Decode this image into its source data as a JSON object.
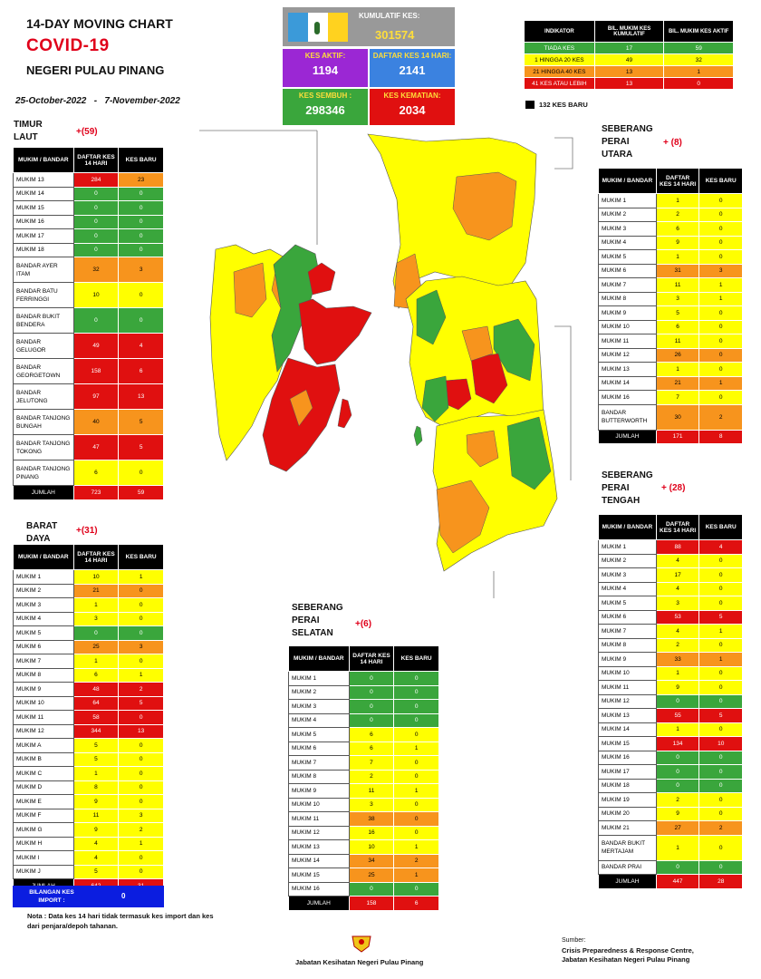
{
  "header": {
    "line1": "14-DAY MOVING CHART",
    "line2": "COVID-19",
    "line3": "NEGERI PULAU PINANG",
    "date_from": "25-October-2022",
    "dash": "-",
    "date_to": "7-November-2022"
  },
  "kpis": {
    "kumulatif": {
      "label": "KUMULATIF KES:",
      "value": "301574"
    },
    "aktif": {
      "label": "KES AKTIF:",
      "value": "1194"
    },
    "daftar14": {
      "label": "DAFTAR KES 14 HARI:",
      "value": "2141"
    },
    "sembuh": {
      "label": "KES SEMBUH :",
      "value": "298346"
    },
    "kematian": {
      "label": "KES KEMATIAN:",
      "value": "2034"
    }
  },
  "indicator": {
    "headers": [
      "INDIKATOR",
      "BIL. MUKIM KES KUMULATIF",
      "BIL. MUKIM KES AKTIF"
    ],
    "rows": [
      {
        "label": "TIADA KES",
        "a": "17",
        "b": "59",
        "c": "G"
      },
      {
        "label": "1 HINGGA 20 KES",
        "a": "49",
        "b": "32",
        "c": "Y"
      },
      {
        "label": "21 HINGGA 40 KES",
        "a": "13",
        "b": "1",
        "c": "O"
      },
      {
        "label": "41 KES ATAU LEBIH",
        "a": "13",
        "b": "0",
        "c": "R"
      }
    ],
    "legend": "132  KES BARU"
  },
  "common": {
    "h_name": "MUKIM / BANDAR",
    "h_daftar": "DAFTAR KES 14 HARI",
    "h_baru": "KES BARU",
    "jumlah": "JUMLAH"
  },
  "districts": {
    "tl": {
      "name": "TIMUR LAUT",
      "plus": "+(59)",
      "total_daftar": "723",
      "total_baru": "59",
      "rows": [
        {
          "n": "MUKIM 13",
          "d": "284",
          "b": "23",
          "cd": "R",
          "cb": "O"
        },
        {
          "n": "MUKIM 14",
          "d": "0",
          "b": "0",
          "cd": "G",
          "cb": "G"
        },
        {
          "n": "MUKIM 15",
          "d": "0",
          "b": "0",
          "cd": "G",
          "cb": "G"
        },
        {
          "n": "MUKIM 16",
          "d": "0",
          "b": "0",
          "cd": "G",
          "cb": "G"
        },
        {
          "n": "MUKIM 17",
          "d": "0",
          "b": "0",
          "cd": "G",
          "cb": "G"
        },
        {
          "n": "MUKIM 18",
          "d": "0",
          "b": "0",
          "cd": "G",
          "cb": "G"
        },
        {
          "n": "BANDAR AYER ITAM",
          "d": "32",
          "b": "3",
          "cd": "O",
          "cb": "O",
          "h": 2
        },
        {
          "n": "BANDAR BATU FERRINGGI",
          "d": "10",
          "b": "0",
          "cd": "Y",
          "cb": "Y",
          "h": 2
        },
        {
          "n": "BANDAR BUKIT BENDERA",
          "d": "0",
          "b": "0",
          "cd": "G",
          "cb": "G",
          "h": 2
        },
        {
          "n": "BANDAR GELUGOR",
          "d": "49",
          "b": "4",
          "cd": "R",
          "cb": "R",
          "h": 2
        },
        {
          "n": "BANDAR GEORGETOWN",
          "d": "158",
          "b": "6",
          "cd": "R",
          "cb": "R",
          "h": 2
        },
        {
          "n": "BANDAR JELUTONG",
          "d": "97",
          "b": "13",
          "cd": "R",
          "cb": "R",
          "h": 2
        },
        {
          "n": "BANDAR TANJONG BUNGAH",
          "d": "40",
          "b": "5",
          "cd": "O",
          "cb": "O",
          "h": 2
        },
        {
          "n": "BANDAR TANJONG TOKONG",
          "d": "47",
          "b": "5",
          "cd": "R",
          "cb": "R",
          "h": 2
        },
        {
          "n": "BANDAR TANJONG PINANG",
          "d": "6",
          "b": "0",
          "cd": "Y",
          "cb": "Y",
          "h": 2
        }
      ]
    },
    "bd": {
      "name": "BARAT DAYA",
      "plus": "+(31)",
      "total_daftar": "642",
      "total_baru": "31",
      "rows": [
        {
          "n": "MUKIM 1",
          "d": "10",
          "b": "1",
          "cd": "Y",
          "cb": "Y"
        },
        {
          "n": "MUKIM 2",
          "d": "21",
          "b": "0",
          "cd": "O",
          "cb": "O"
        },
        {
          "n": "MUKIM 3",
          "d": "1",
          "b": "0",
          "cd": "Y",
          "cb": "Y"
        },
        {
          "n": "MUKIM 4",
          "d": "3",
          "b": "0",
          "cd": "Y",
          "cb": "Y"
        },
        {
          "n": "MUKIM 5",
          "d": "0",
          "b": "0",
          "cd": "G",
          "cb": "G"
        },
        {
          "n": "MUKIM 6",
          "d": "25",
          "b": "3",
          "cd": "O",
          "cb": "O"
        },
        {
          "n": "MUKIM 7",
          "d": "1",
          "b": "0",
          "cd": "Y",
          "cb": "Y"
        },
        {
          "n": "MUKIM 8",
          "d": "6",
          "b": "1",
          "cd": "Y",
          "cb": "Y"
        },
        {
          "n": "MUKIM 9",
          "d": "48",
          "b": "2",
          "cd": "R",
          "cb": "R"
        },
        {
          "n": "MUKIM 10",
          "d": "64",
          "b": "5",
          "cd": "R",
          "cb": "R"
        },
        {
          "n": "MUKIM 11",
          "d": "58",
          "b": "0",
          "cd": "R",
          "cb": "R"
        },
        {
          "n": "MUKIM 12",
          "d": "344",
          "b": "13",
          "cd": "R",
          "cb": "R"
        },
        {
          "n": "MUKIM A",
          "d": "5",
          "b": "0",
          "cd": "Y",
          "cb": "Y"
        },
        {
          "n": "MUKIM B",
          "d": "5",
          "b": "0",
          "cd": "Y",
          "cb": "Y"
        },
        {
          "n": "MUKIM C",
          "d": "1",
          "b": "0",
          "cd": "Y",
          "cb": "Y"
        },
        {
          "n": "MUKIM D",
          "d": "8",
          "b": "0",
          "cd": "Y",
          "cb": "Y"
        },
        {
          "n": "MUKIM E",
          "d": "9",
          "b": "0",
          "cd": "Y",
          "cb": "Y"
        },
        {
          "n": "MUKIM F",
          "d": "11",
          "b": "3",
          "cd": "Y",
          "cb": "Y"
        },
        {
          "n": "MUKIM G",
          "d": "9",
          "b": "2",
          "cd": "Y",
          "cb": "Y"
        },
        {
          "n": "MUKIM H",
          "d": "4",
          "b": "1",
          "cd": "Y",
          "cb": "Y"
        },
        {
          "n": "MUKIM I",
          "d": "4",
          "b": "0",
          "cd": "Y",
          "cb": "Y"
        },
        {
          "n": "MUKIM J",
          "d": "5",
          "b": "0",
          "cd": "Y",
          "cb": "Y"
        }
      ]
    },
    "spu": {
      "name": "SEBERANG PERAI UTARA",
      "plus": "+ (8)",
      "total_daftar": "171",
      "total_baru": "8",
      "rows": [
        {
          "n": "MUKIM 1",
          "d": "1",
          "b": "0",
          "cd": "Y",
          "cb": "Y"
        },
        {
          "n": "MUKIM 2",
          "d": "2",
          "b": "0",
          "cd": "Y",
          "cb": "Y"
        },
        {
          "n": "MUKIM 3",
          "d": "6",
          "b": "0",
          "cd": "Y",
          "cb": "Y"
        },
        {
          "n": "MUKIM 4",
          "d": "9",
          "b": "0",
          "cd": "Y",
          "cb": "Y"
        },
        {
          "n": "MUKIM 5",
          "d": "1",
          "b": "0",
          "cd": "Y",
          "cb": "Y"
        },
        {
          "n": "MUKIM 6",
          "d": "31",
          "b": "3",
          "cd": "O",
          "cb": "O"
        },
        {
          "n": "MUKIM 7",
          "d": "11",
          "b": "1",
          "cd": "Y",
          "cb": "Y"
        },
        {
          "n": "MUKIM 8",
          "d": "3",
          "b": "1",
          "cd": "Y",
          "cb": "Y"
        },
        {
          "n": "MUKIM 9",
          "d": "5",
          "b": "0",
          "cd": "Y",
          "cb": "Y"
        },
        {
          "n": "MUKIM 10",
          "d": "6",
          "b": "0",
          "cd": "Y",
          "cb": "Y"
        },
        {
          "n": "MUKIM 11",
          "d": "11",
          "b": "0",
          "cd": "Y",
          "cb": "Y"
        },
        {
          "n": "MUKIM 12",
          "d": "26",
          "b": "0",
          "cd": "O",
          "cb": "O"
        },
        {
          "n": "MUKIM 13",
          "d": "1",
          "b": "0",
          "cd": "Y",
          "cb": "Y"
        },
        {
          "n": "MUKIM 14",
          "d": "21",
          "b": "1",
          "cd": "O",
          "cb": "O"
        },
        {
          "n": "MUKIM 16",
          "d": "7",
          "b": "0",
          "cd": "Y",
          "cb": "Y"
        },
        {
          "n": "BANDAR BUTTERWORTH",
          "d": "30",
          "b": "2",
          "cd": "O",
          "cb": "O",
          "h": 2
        }
      ]
    },
    "spt": {
      "name": "SEBERANG PERAI TENGAH",
      "plus": "+ (28)",
      "total_daftar": "447",
      "total_baru": "28",
      "rows": [
        {
          "n": "MUKIM 1",
          "d": "88",
          "b": "4",
          "cd": "R",
          "cb": "R"
        },
        {
          "n": "MUKIM 2",
          "d": "4",
          "b": "0",
          "cd": "Y",
          "cb": "Y"
        },
        {
          "n": "MUKIM 3",
          "d": "17",
          "b": "0",
          "cd": "Y",
          "cb": "Y"
        },
        {
          "n": "MUKIM 4",
          "d": "4",
          "b": "0",
          "cd": "Y",
          "cb": "Y"
        },
        {
          "n": "MUKIM 5",
          "d": "3",
          "b": "0",
          "cd": "Y",
          "cb": "Y"
        },
        {
          "n": "MUKIM 6",
          "d": "53",
          "b": "5",
          "cd": "R",
          "cb": "R"
        },
        {
          "n": "MUKIM 7",
          "d": "4",
          "b": "1",
          "cd": "Y",
          "cb": "Y"
        },
        {
          "n": "MUKIM 8",
          "d": "2",
          "b": "0",
          "cd": "Y",
          "cb": "Y"
        },
        {
          "n": "MUKIM 9",
          "d": "33",
          "b": "1",
          "cd": "O",
          "cb": "O"
        },
        {
          "n": "MUKIM 10",
          "d": "1",
          "b": "0",
          "cd": "Y",
          "cb": "Y"
        },
        {
          "n": "MUKIM 11",
          "d": "9",
          "b": "0",
          "cd": "Y",
          "cb": "Y"
        },
        {
          "n": "MUKIM 12",
          "d": "0",
          "b": "0",
          "cd": "G",
          "cb": "G"
        },
        {
          "n": "MUKIM 13",
          "d": "55",
          "b": "5",
          "cd": "R",
          "cb": "R"
        },
        {
          "n": "MUKIM 14",
          "d": "1",
          "b": "0",
          "cd": "Y",
          "cb": "Y"
        },
        {
          "n": "MUKIM 15",
          "d": "134",
          "b": "10",
          "cd": "R",
          "cb": "R"
        },
        {
          "n": "MUKIM 16",
          "d": "0",
          "b": "0",
          "cd": "G",
          "cb": "G"
        },
        {
          "n": "MUKIM 17",
          "d": "0",
          "b": "0",
          "cd": "G",
          "cb": "G"
        },
        {
          "n": "MUKIM 18",
          "d": "0",
          "b": "0",
          "cd": "G",
          "cb": "G"
        },
        {
          "n": "MUKIM 19",
          "d": "2",
          "b": "0",
          "cd": "Y",
          "cb": "Y"
        },
        {
          "n": "MUKIM 20",
          "d": "9",
          "b": "0",
          "cd": "Y",
          "cb": "Y"
        },
        {
          "n": "MUKIM 21",
          "d": "27",
          "b": "2",
          "cd": "O",
          "cb": "O"
        },
        {
          "n": "BANDAR BUKIT MERTAJAM",
          "d": "1",
          "b": "0",
          "cd": "Y",
          "cb": "Y",
          "h": 2
        },
        {
          "n": "BANDAR PRAI",
          "d": "0",
          "b": "0",
          "cd": "G",
          "cb": "G"
        }
      ]
    },
    "sps": {
      "name": "SEBERANG PERAI SELATAN",
      "plus": "+(6)",
      "total_daftar": "158",
      "total_baru": "6",
      "rows": [
        {
          "n": "MUKIM 1",
          "d": "0",
          "b": "0",
          "cd": "G",
          "cb": "G"
        },
        {
          "n": "MUKIM 2",
          "d": "0",
          "b": "0",
          "cd": "G",
          "cb": "G"
        },
        {
          "n": "MUKIM 3",
          "d": "0",
          "b": "0",
          "cd": "G",
          "cb": "G"
        },
        {
          "n": "MUKIM 4",
          "d": "0",
          "b": "0",
          "cd": "G",
          "cb": "G"
        },
        {
          "n": "MUKIM 5",
          "d": "6",
          "b": "0",
          "cd": "Y",
          "cb": "Y"
        },
        {
          "n": "MUKIM 6",
          "d": "6",
          "b": "1",
          "cd": "Y",
          "cb": "Y"
        },
        {
          "n": "MUKIM 7",
          "d": "7",
          "b": "0",
          "cd": "Y",
          "cb": "Y"
        },
        {
          "n": "MUKIM 8",
          "d": "2",
          "b": "0",
          "cd": "Y",
          "cb": "Y"
        },
        {
          "n": "MUKIM 9",
          "d": "11",
          "b": "1",
          "cd": "Y",
          "cb": "Y"
        },
        {
          "n": "MUKIM 10",
          "d": "3",
          "b": "0",
          "cd": "Y",
          "cb": "Y"
        },
        {
          "n": "MUKIM 11",
          "d": "38",
          "b": "0",
          "cd": "O",
          "cb": "O"
        },
        {
          "n": "MUKIM 12",
          "d": "16",
          "b": "0",
          "cd": "Y",
          "cb": "Y"
        },
        {
          "n": "MUKIM 13",
          "d": "10",
          "b": "1",
          "cd": "Y",
          "cb": "Y"
        },
        {
          "n": "MUKIM 14",
          "d": "34",
          "b": "2",
          "cd": "O",
          "cb": "O"
        },
        {
          "n": "MUKIM 15",
          "d": "25",
          "b": "1",
          "cd": "O",
          "cb": "O"
        },
        {
          "n": "MUKIM 16",
          "d": "0",
          "b": "0",
          "cd": "G",
          "cb": "G"
        }
      ]
    }
  },
  "import": {
    "label": "BILANGAN KES IMPORT :",
    "value": "0"
  },
  "note": "Nota : Data kes 14 hari tidak termasuk kes import dan kes dari penjara/depoh tahanan.",
  "footer": {
    "dept": "Jabatan Kesihatan Negeri Pulau Pinang",
    "source_label": "Sumber:",
    "source1": "Crisis Preparedness & Response Centre,",
    "source2": "Jabatan Kesihatan Negeri Pulau Pinang"
  },
  "colors": {
    "green": "#3aa63c",
    "yellow": "#ffff00",
    "orange": "#f7941d",
    "red": "#e01010",
    "purple": "#9b27d4",
    "blue": "#3b82e0"
  }
}
